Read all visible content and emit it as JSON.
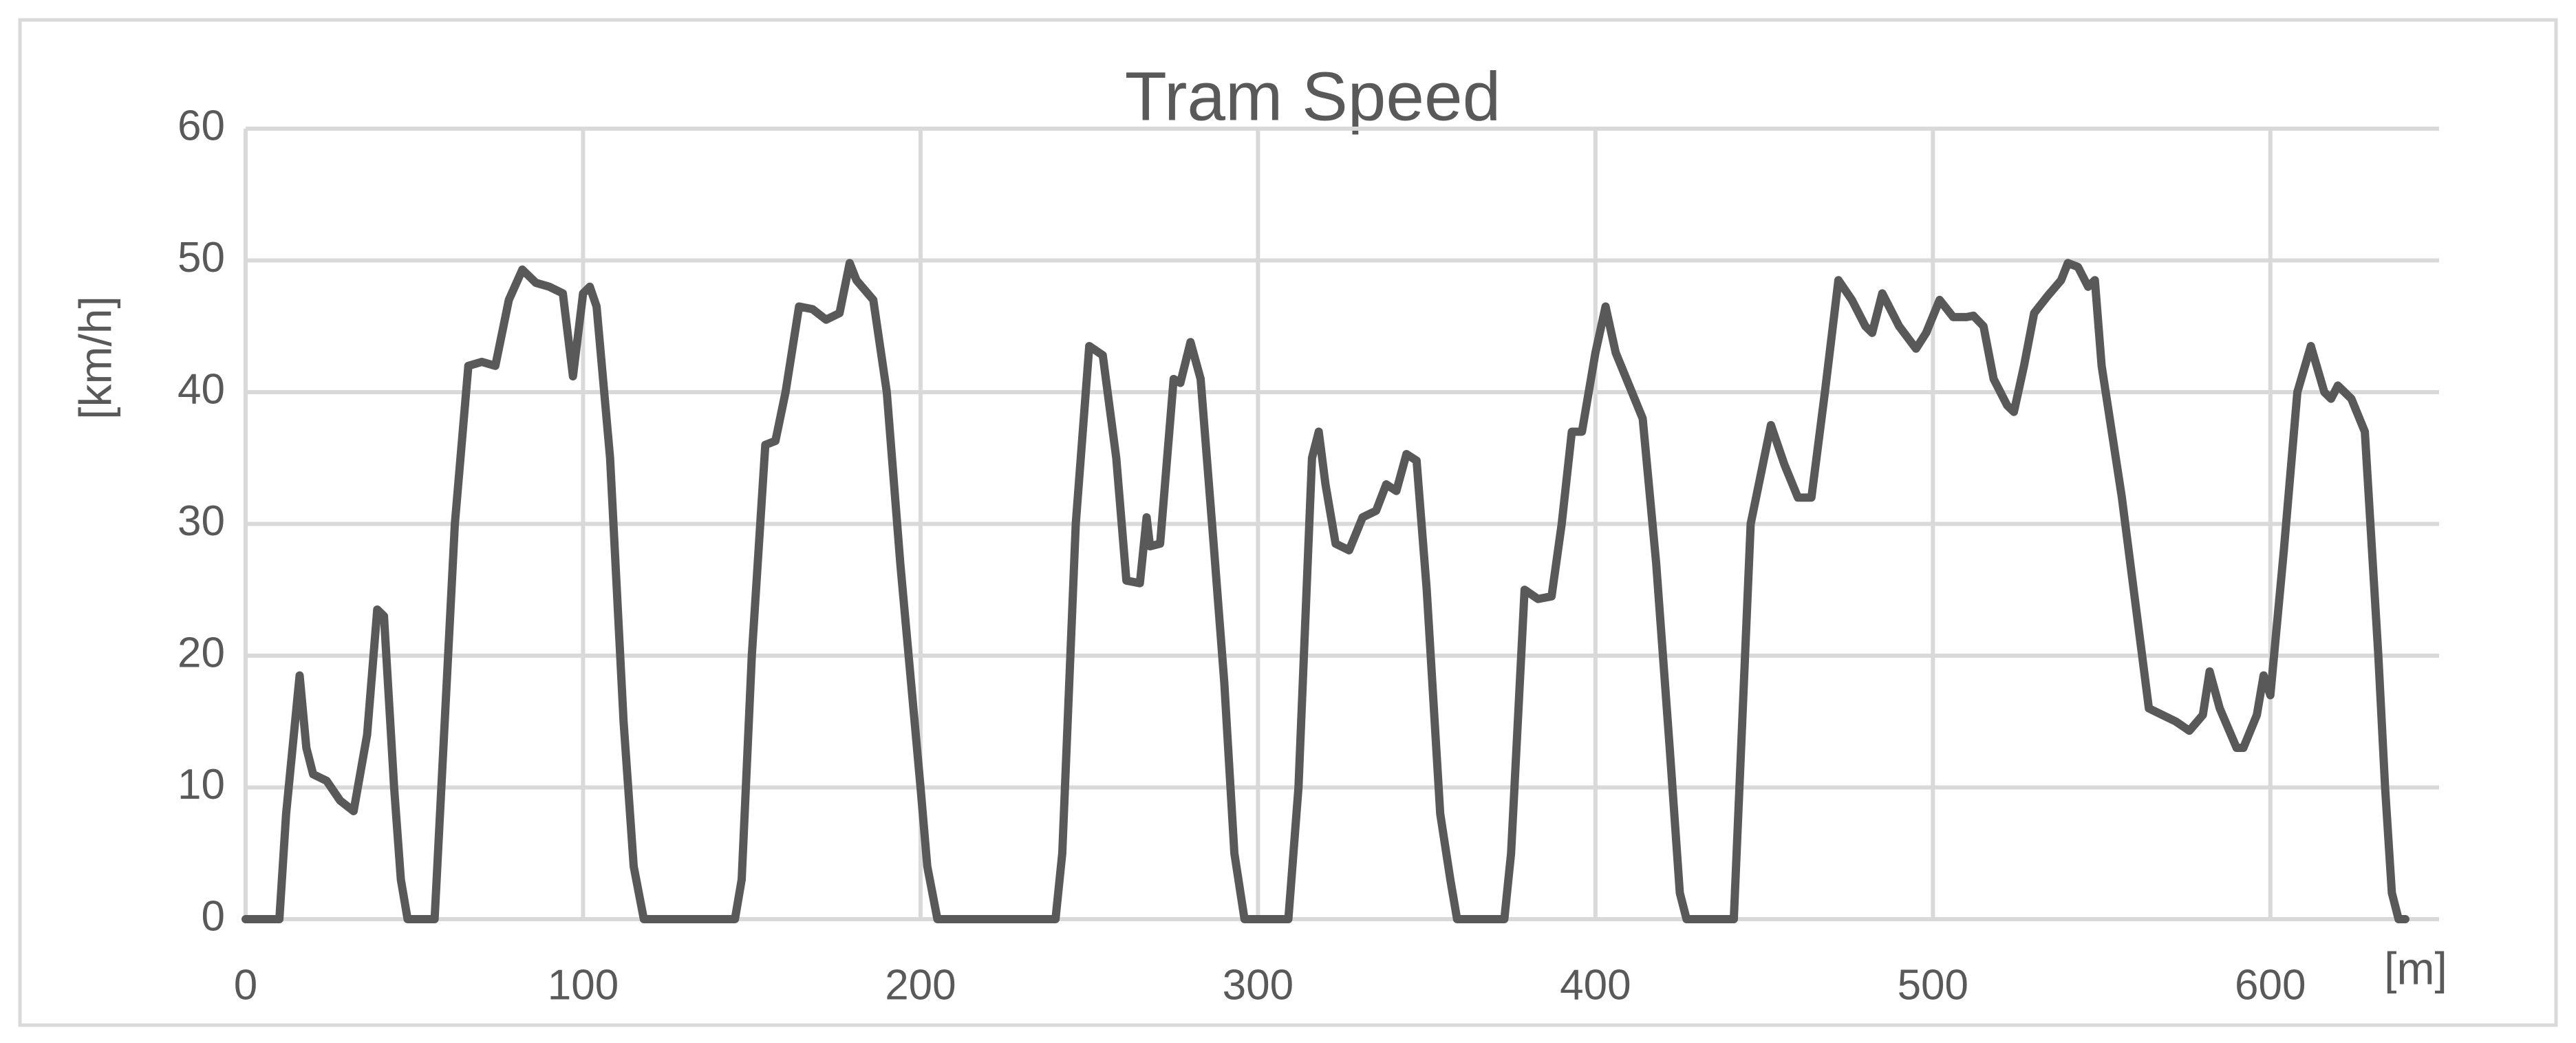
{
  "chart_data": {
    "type": "line",
    "title": "Tram Speed",
    "y_label": "[km/h]",
    "x_label": "[m]",
    "color": "#595959",
    "grid": true,
    "xlim": [
      0,
      650
    ],
    "ylim": [
      0,
      60
    ],
    "xticks": [
      0,
      100,
      200,
      300,
      400,
      500,
      600
    ],
    "yticks": [
      0,
      10,
      20,
      30,
      40,
      50,
      60
    ],
    "x": [
      0,
      10,
      12,
      16,
      18,
      20,
      24,
      28,
      32,
      36,
      39,
      41,
      44,
      46,
      48,
      56,
      58,
      62,
      66,
      70,
      74,
      78,
      82,
      86,
      90,
      94,
      97,
      100,
      102,
      104,
      108,
      112,
      115,
      118,
      145,
      147,
      150,
      154,
      157,
      160,
      164,
      168,
      172,
      176,
      179,
      181,
      186,
      190,
      194,
      200,
      202,
      205,
      240,
      242,
      246,
      250,
      254,
      258,
      261,
      265,
      267,
      268,
      271,
      275,
      277,
      280,
      283,
      287,
      290,
      293,
      296,
      309,
      312,
      316,
      318,
      320,
      323,
      327,
      331,
      335,
      338,
      341,
      344,
      347,
      350,
      354,
      357,
      359,
      373,
      375,
      379,
      383,
      387,
      390,
      393,
      396,
      400,
      403,
      406,
      410,
      414,
      418,
      422,
      425,
      427,
      441,
      443,
      446,
      452,
      456,
      460,
      464,
      468,
      472,
      476,
      480,
      482,
      485,
      490,
      495,
      498,
      502,
      506,
      510,
      512,
      515,
      518,
      522,
      524,
      527,
      530,
      534,
      538,
      540,
      543,
      546,
      548,
      550,
      556,
      560,
      564,
      568,
      572,
      576,
      580,
      582,
      585,
      590,
      592,
      596,
      598,
      600,
      604,
      608,
      612,
      616,
      618,
      620,
      624,
      628,
      632,
      634,
      636,
      638,
      640
    ],
    "values": [
      0,
      0,
      8,
      18.5,
      13,
      11,
      10.5,
      9,
      8.2,
      14,
      23.5,
      23,
      10,
      3,
      0,
      0,
      10,
      30,
      42,
      42.3,
      42,
      47,
      49.3,
      48.3,
      48,
      47.5,
      41.2,
      47.5,
      48,
      46.5,
      35,
      15,
      4,
      0,
      0,
      3,
      20,
      36,
      36.3,
      40,
      46.5,
      46.3,
      45.5,
      46,
      49.8,
      48.5,
      47,
      40,
      27,
      10,
      4,
      0,
      0,
      5,
      30,
      43.5,
      42.8,
      35,
      25.7,
      25.5,
      30.5,
      28.3,
      28.5,
      41,
      40.7,
      43.8,
      41,
      28,
      18,
      5,
      0,
      0,
      10,
      35,
      37,
      33,
      28.5,
      28,
      30.5,
      31,
      33,
      32.5,
      35.3,
      34.8,
      25,
      8,
      3,
      0,
      0,
      5,
      25,
      24.3,
      24.5,
      30,
      37,
      37,
      43,
      46.5,
      43,
      40.5,
      38,
      27,
      13,
      2,
      0,
      0,
      12,
      30,
      37.5,
      34.5,
      32,
      32,
      40,
      48.5,
      47,
      45,
      44.5,
      47.5,
      45,
      43.3,
      44.5,
      47,
      45.7,
      45.7,
      45.8,
      45,
      41,
      39,
      38.5,
      42,
      46,
      47.3,
      48.5,
      49.8,
      49.5,
      48,
      48.5,
      42,
      32,
      24,
      16,
      15.5,
      15,
      14.3,
      15.5,
      18.8,
      16,
      13,
      13,
      15.5,
      18.5,
      17,
      28,
      40,
      43.5,
      40,
      39.5,
      40.5,
      39.5,
      37,
      20,
      10,
      2,
      0,
      0
    ]
  }
}
